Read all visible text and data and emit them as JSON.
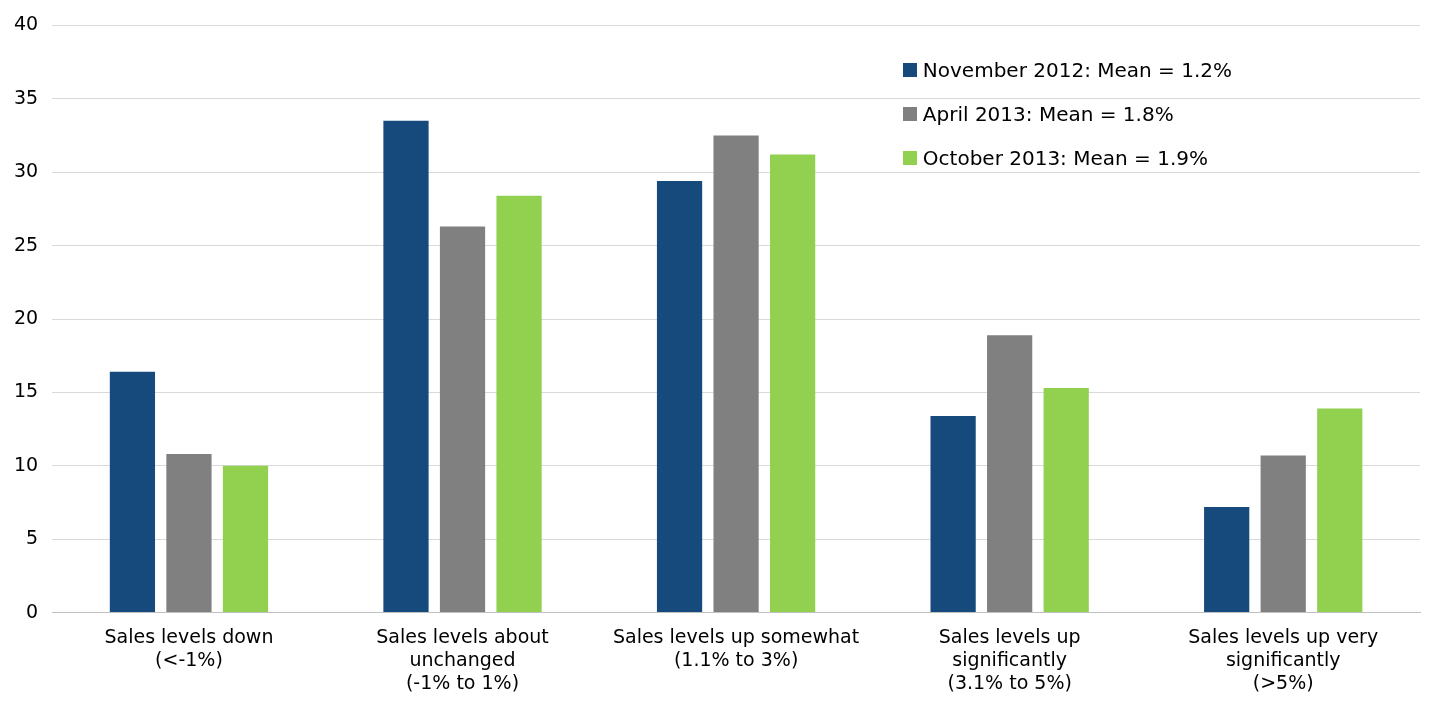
{
  "chart_data": {
    "type": "bar",
    "categories": [
      "Sales levels down\n(<-1%)",
      "Sales levels about\nunchanged\n(-1% to 1%)",
      "Sales levels up somewhat\n(1.1% to 3%)",
      "Sales levels up\nsignificantly\n(3.1% to 5%)",
      "Sales levels up very\nsignificantly\n(>5%)"
    ],
    "series": [
      {
        "name": "November 2012: Mean = 1.2%",
        "color": "#174a7c",
        "values": [
          16.4,
          33.5,
          29.4,
          13.4,
          7.2
        ]
      },
      {
        "name": "April 2013: Mean = 1.8%",
        "color": "#808080",
        "values": [
          10.8,
          26.3,
          32.5,
          18.9,
          10.7
        ]
      },
      {
        "name": "October 2013: Mean = 1.9%",
        "color": "#92d050",
        "values": [
          10.0,
          28.4,
          31.2,
          15.3,
          13.9
        ]
      }
    ],
    "ylim": [
      0,
      40
    ],
    "yticks": [
      0,
      5,
      10,
      15,
      20,
      25,
      30,
      35,
      40
    ],
    "grid": "y",
    "legend": "top right"
  }
}
